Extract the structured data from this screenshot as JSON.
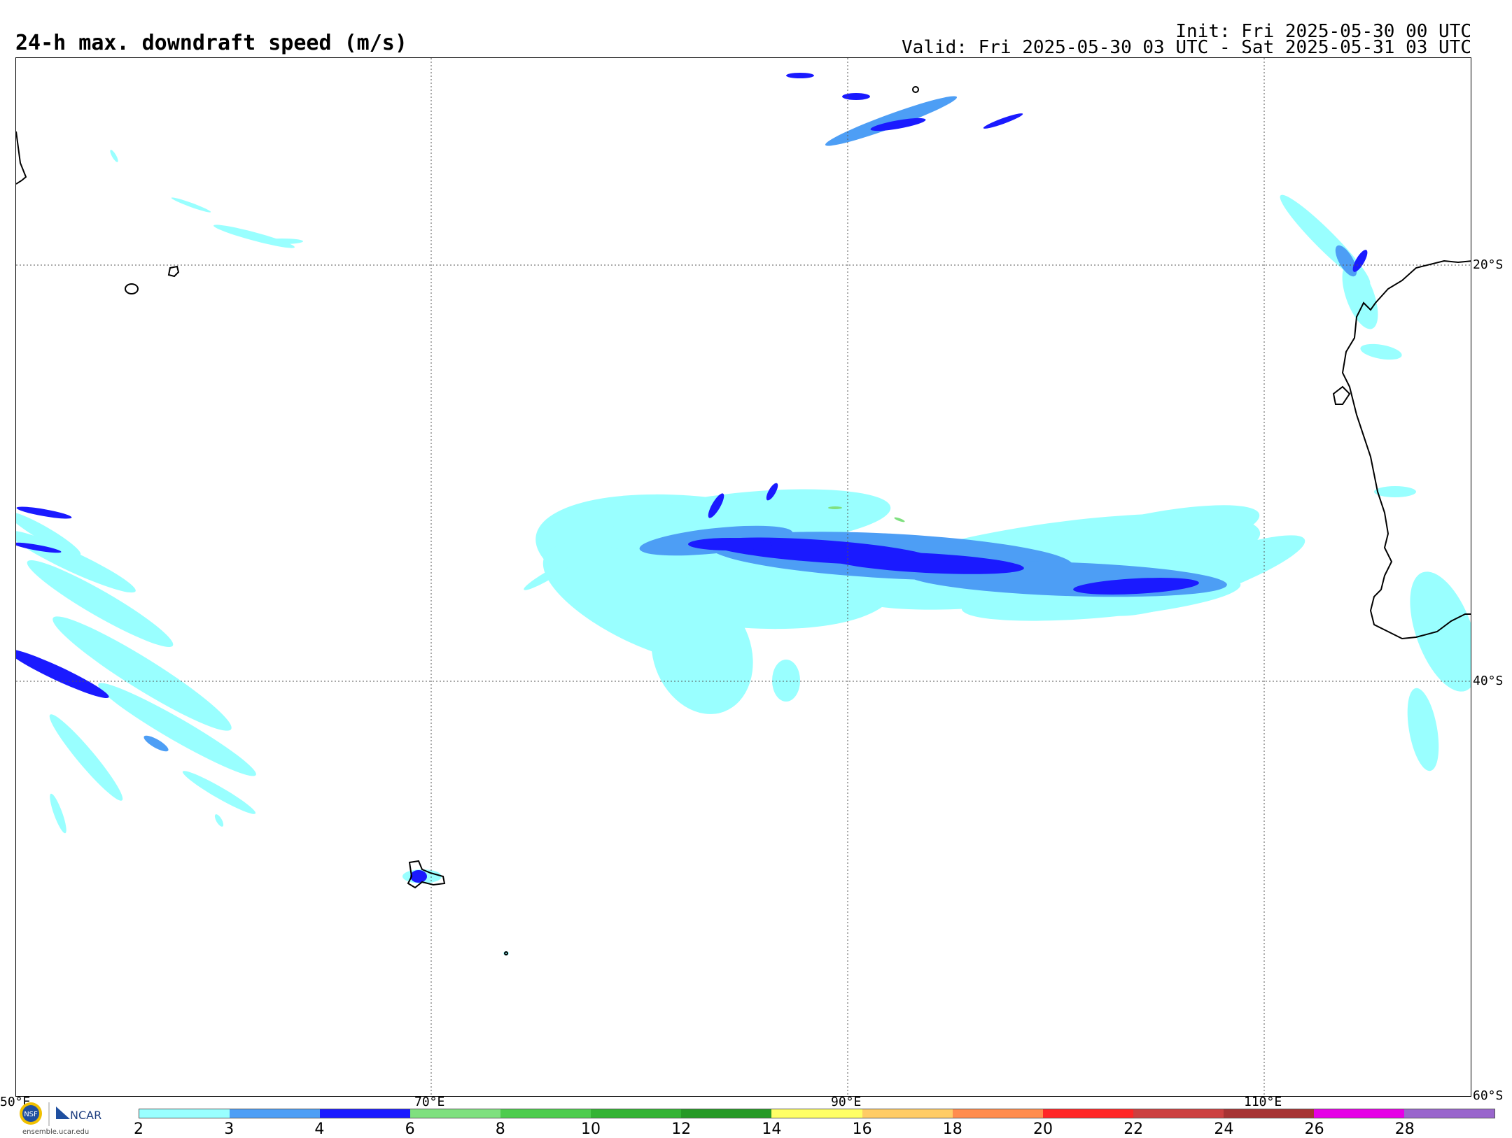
{
  "header": {
    "title": "24-h max. downdraft speed (m/s)",
    "init": "Init: Fri 2025-05-30 00 UTC",
    "valid": "Valid: Fri 2025-05-30 03 UTC - Sat 2025-05-31 03 UTC"
  },
  "map": {
    "region": "Southern Indian Ocean",
    "lat_labels": [
      "20°S",
      "40°S",
      "60°S"
    ],
    "lon_labels": [
      "50°E",
      "70°E",
      "90°E",
      "110°E"
    ],
    "grid_style": "dotted",
    "coastline_color": "#000000"
  },
  "colorbar": {
    "ticks": [
      "2",
      "3",
      "4",
      "6",
      "8",
      "10",
      "12",
      "14",
      "16",
      "18",
      "20",
      "22",
      "24",
      "26",
      "28"
    ],
    "colors": [
      "#99ffff",
      "#4d9ef5",
      "#1a1aff",
      "#7fe07f",
      "#4dcc4d",
      "#33b333",
      "#269926",
      "#ffff66",
      "#ffcc66",
      "#ff8c4d",
      "#ff2626",
      "#cc4040",
      "#a63333",
      "#e600e6",
      "#9966cc"
    ]
  },
  "logo": {
    "text_ncar": "NCAR",
    "text_nsf": "NSF",
    "url": "ensemble.ucar.edu"
  }
}
